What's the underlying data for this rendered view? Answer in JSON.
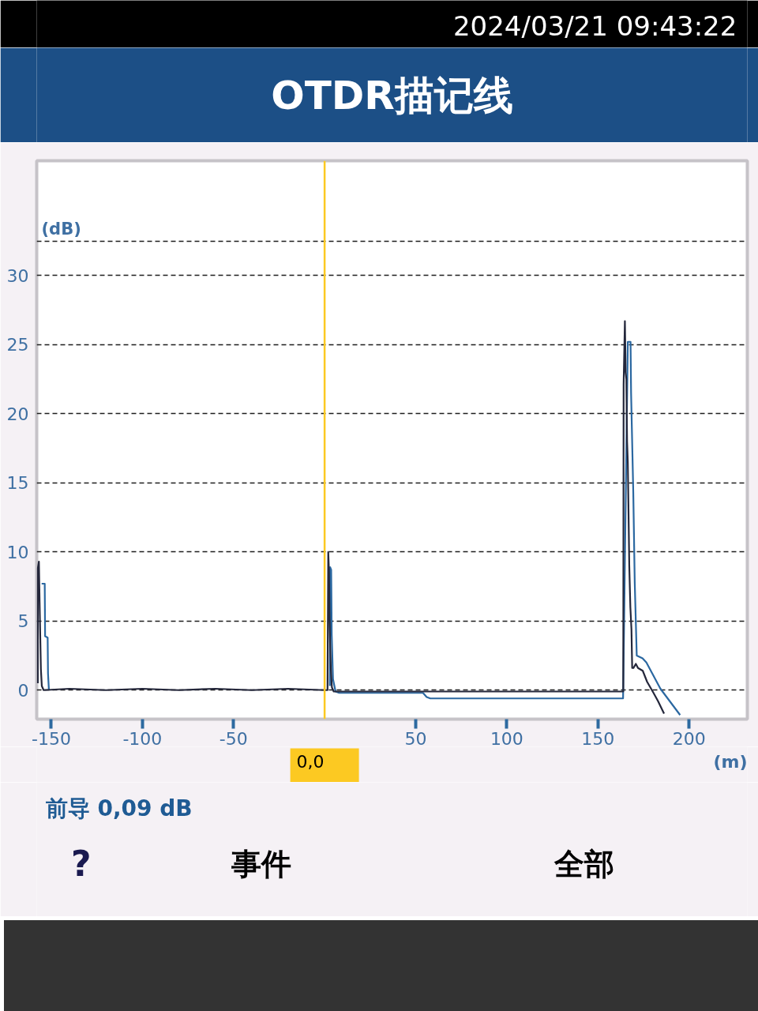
{
  "chart_data": {
    "type": "line",
    "title": "OTDR描记线",
    "xlabel": "(m)",
    "ylabel": "(dB)",
    "xlim": [
      -158,
      232
    ],
    "ylim": [
      -2.1,
      38.3
    ],
    "xticks": [
      -150,
      -100,
      -50,
      50,
      100,
      150,
      200
    ],
    "yticks": [
      0,
      5,
      10,
      15,
      20,
      25,
      30,
      {
        "value": 32.5,
        "label": null
      }
    ],
    "grid": "y",
    "series": [
      {
        "color": "#2b68a1",
        "x": [
          -155.3,
          -153.6,
          -153.4,
          -152.0,
          -151.8,
          -151.3,
          -150.0,
          2.9,
          3.0,
          3.6,
          3.9,
          4.6,
          6.0,
          8.0,
          20,
          35,
          54,
          56,
          58,
          80,
          100,
          120,
          140,
          163.8,
          166.4,
          167.9,
          168.2,
          169.4,
          170.2,
          171.3,
          174.5,
          176.6,
          184.3,
          195.1
        ],
        "values": [
          7.7,
          7.7,
          3.9,
          3.8,
          1.2,
          0.0,
          null,
          0.3,
          8.9,
          8.7,
          4.0,
          0.8,
          -0.1,
          -0.2,
          -0.2,
          -0.2,
          -0.2,
          -0.5,
          -0.6,
          -0.6,
          -0.6,
          -0.6,
          -0.6,
          -0.6,
          25.2,
          25.2,
          21.5,
          14.3,
          7.8,
          2.5,
          2.3,
          2.0,
          0.1,
          -1.8
        ]
      },
      {
        "color": "#24273b",
        "x": [
          -157.4,
          -157.4,
          -156.8,
          -156.3,
          -155.7,
          -155.2,
          -154.2,
          -140,
          -120,
          -100,
          -80,
          -60,
          -40,
          -20,
          0,
          1.6,
          2.0,
          2.4,
          2.7,
          3.0,
          3.4,
          4.0,
          5.0,
          30,
          60,
          90,
          120,
          150,
          163.9,
          164.1,
          164.8,
          165.2,
          165.6,
          166.0,
          166.4,
          167.2,
          167.8,
          168.4,
          168.8,
          169.5,
          170.8,
          172.0,
          174.6,
          177.0,
          180.5,
          183.0,
          186.3
        ],
        "values": [
          0.5,
          8.8,
          9.3,
          5.5,
          1.5,
          0.3,
          0.0,
          0.1,
          0.0,
          0.1,
          0.0,
          0.1,
          0.0,
          0.1,
          0.0,
          0.0,
          10.0,
          8.6,
          5.5,
          3.5,
          1.6,
          0.2,
          -0.1,
          -0.1,
          -0.1,
          -0.1,
          -0.1,
          -0.1,
          -0.1,
          22.1,
          26.7,
          23.0,
          22.5,
          18.0,
          16.5,
          9.0,
          6.0,
          4.4,
          1.6,
          1.6,
          1.9,
          1.6,
          1.4,
          0.6,
          -0.2,
          -0.8,
          -1.7
        ]
      }
    ],
    "ref_lines": [
      {
        "axis": "x",
        "value": 0,
        "label": "0,0",
        "color": "#fcc922"
      }
    ],
    "annotations": [
      "2024/03/21 09:43:22",
      "前导 0,09 dB",
      "?",
      "事件",
      "全部"
    ]
  }
}
